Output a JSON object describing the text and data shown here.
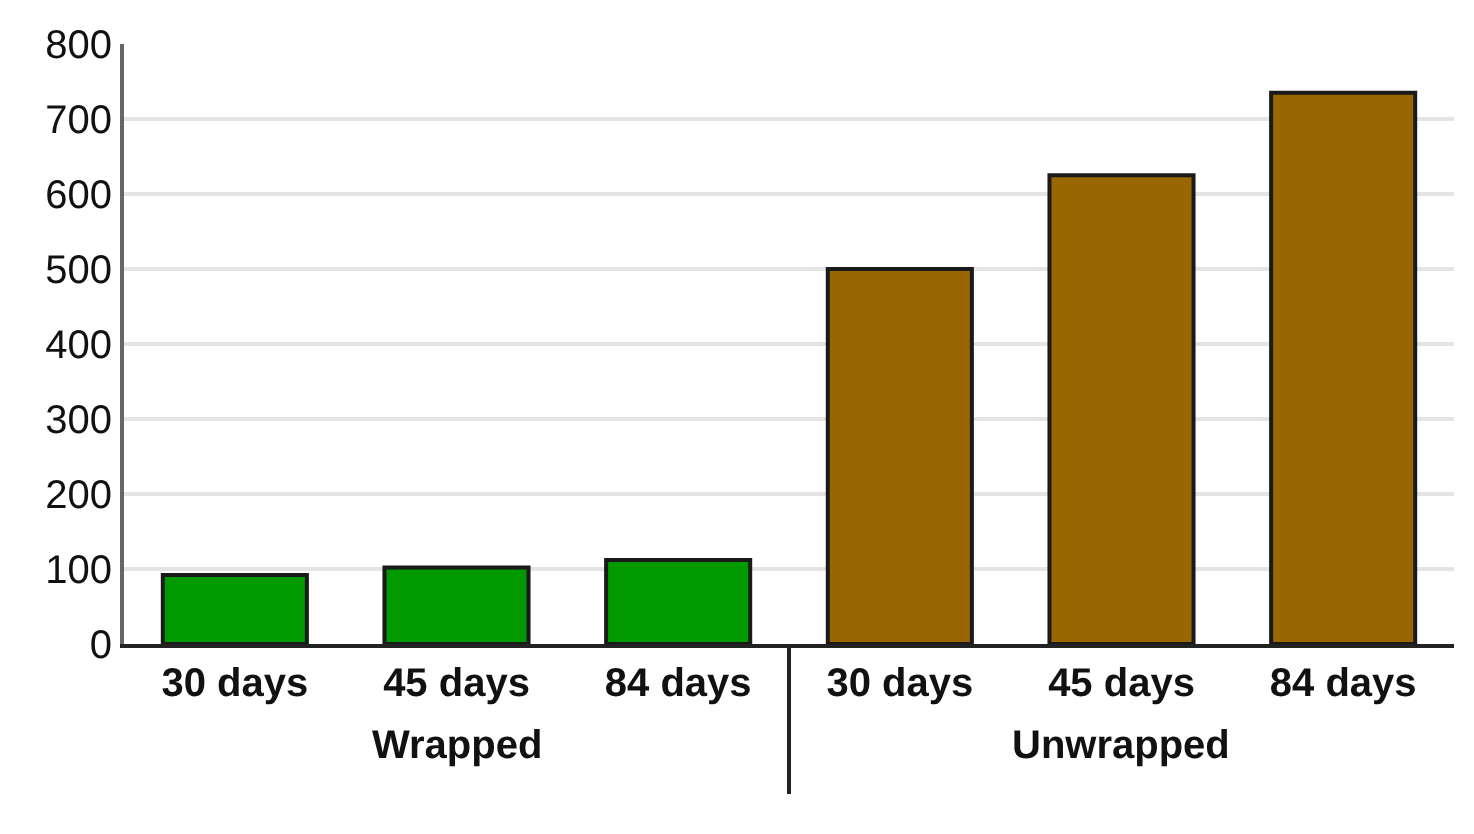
{
  "chart_data": {
    "type": "bar",
    "categories": [
      "30 days",
      "45 days",
      "84 days",
      "30 days",
      "45 days",
      "84 days"
    ],
    "values": [
      92,
      102,
      112,
      500,
      625,
      735
    ],
    "colors": [
      "#009900",
      "#009900",
      "#009900",
      "#996600",
      "#996600",
      "#996600"
    ],
    "ylim": [
      0,
      800
    ],
    "yticks": [
      0,
      100,
      200,
      300,
      400,
      500,
      600,
      700,
      800
    ],
    "grid": "y",
    "annotations": [
      "Wrapped",
      "Unwrapped"
    ]
  }
}
